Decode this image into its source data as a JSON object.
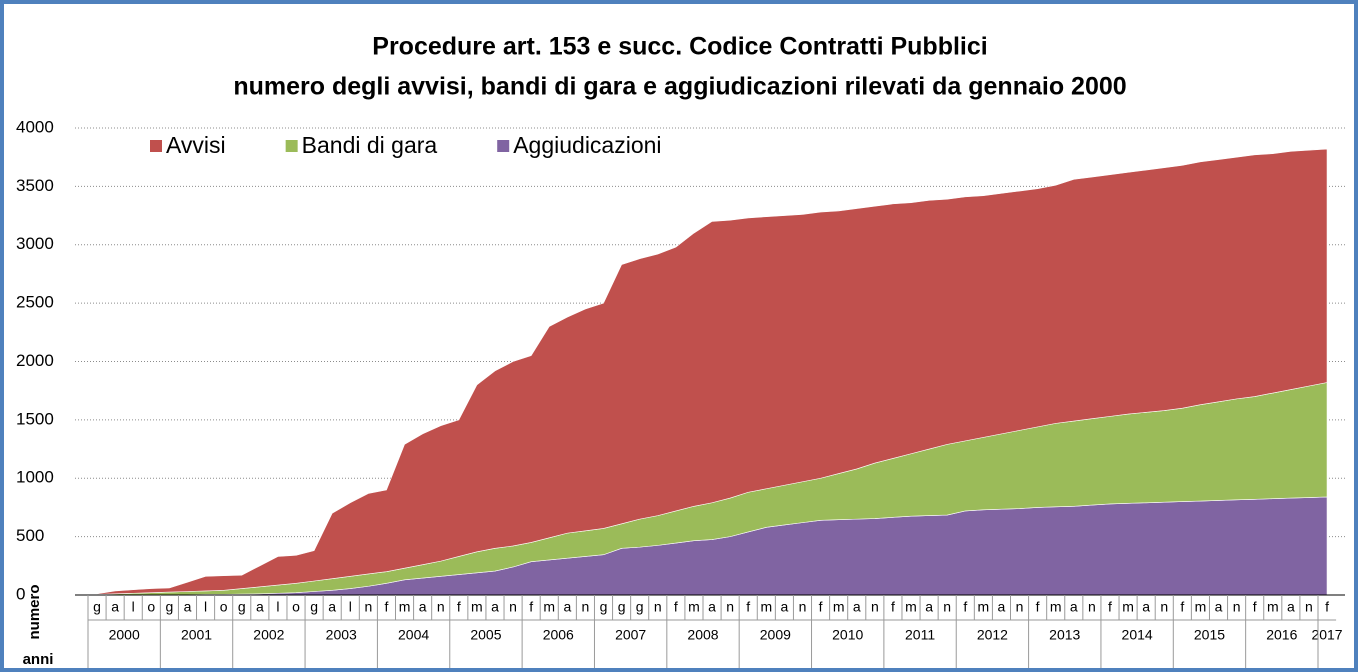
{
  "chart_data": {
    "type": "stacked-area",
    "title": "Procedure art. 153 e succ. Codice Contratti Pubblici",
    "subtitle": "numero degli avvisi, bandi di gara e aggiudicazioni rilevati da gennaio 2000",
    "y_label": "numero",
    "x_label": "anni",
    "categories": [
      "g",
      "a",
      "l",
      "o",
      "g",
      "a",
      "l",
      "o",
      "g",
      "a",
      "l",
      "o",
      "g",
      "a",
      "l",
      "n",
      "f",
      "m",
      "a",
      "n",
      "f",
      "m",
      "a",
      "n",
      "f",
      "m",
      "a",
      "n",
      "g",
      "g",
      "g",
      "n",
      "f",
      "m",
      "a",
      "n",
      "f",
      "m",
      "a",
      "n",
      "f",
      "m",
      "a",
      "n",
      "f",
      "m",
      "a",
      "n",
      "f",
      "m",
      "a",
      "n",
      "f",
      "m",
      "a",
      "n",
      "f",
      "m",
      "a",
      "n",
      "f",
      "m",
      "a",
      "n",
      "f",
      "m",
      "a",
      "n",
      "f"
    ],
    "year_labels": [
      "2000",
      "2001",
      "2002",
      "2003",
      "2004",
      "2005",
      "2006",
      "2007",
      "2008",
      "2009",
      "2010",
      "2011",
      "2012",
      "2013",
      "2014",
      "2015",
      "2016",
      "2017"
    ],
    "series": [
      {
        "name": "Aggiudicazioni",
        "color": "#8064a2",
        "values": [
          0,
          0,
          0,
          0,
          0,
          2,
          5,
          5,
          8,
          10,
          15,
          20,
          30,
          40,
          55,
          75,
          100,
          130,
          145,
          160,
          175,
          190,
          205,
          240,
          285,
          300,
          315,
          330,
          345,
          400,
          410,
          425,
          445,
          465,
          475,
          500,
          540,
          580,
          600,
          620,
          640,
          645,
          650,
          655,
          665,
          675,
          680,
          685,
          720,
          730,
          735,
          740,
          750,
          755,
          760,
          770,
          780,
          785,
          790,
          795,
          800,
          805,
          810,
          815,
          820,
          825,
          830,
          835,
          840
        ]
      },
      {
        "name": "Bandi di gara",
        "color": "#9bbb59",
        "values": [
          5,
          10,
          15,
          20,
          25,
          28,
          30,
          35,
          47,
          60,
          70,
          80,
          90,
          100,
          105,
          105,
          100,
          100,
          115,
          130,
          155,
          180,
          195,
          180,
          165,
          190,
          215,
          220,
          225,
          210,
          240,
          255,
          275,
          295,
          315,
          330,
          340,
          330,
          340,
          350,
          360,
          395,
          430,
          475,
          505,
          535,
          570,
          605,
          600,
          620,
          645,
          670,
          690,
          715,
          730,
          740,
          750,
          765,
          775,
          785,
          800,
          825,
          845,
          865,
          880,
          905,
          930,
          955,
          980
        ]
      },
      {
        "name": "Avvisi",
        "color": "#c0504d",
        "values": [
          5,
          25,
          30,
          35,
          35,
          80,
          125,
          125,
          115,
          180,
          245,
          240,
          260,
          560,
          630,
          690,
          700,
          1060,
          1120,
          1160,
          1170,
          1430,
          1520,
          1580,
          1600,
          1810,
          1850,
          1900,
          1930,
          2220,
          2230,
          2240,
          2260,
          2340,
          2410,
          2380,
          2350,
          2330,
          2310,
          2290,
          2280,
          2250,
          2230,
          2200,
          2180,
          2150,
          2130,
          2100,
          2090,
          2070,
          2060,
          2050,
          2040,
          2040,
          2070,
          2070,
          2070,
          2070,
          2075,
          2080,
          2080,
          2080,
          2075,
          2070,
          2070,
          2050,
          2040,
          2020,
          2000
        ]
      }
    ],
    "legend_order": [
      2,
      1,
      0
    ],
    "ylim": [
      0,
      4000
    ],
    "yticks": [
      0,
      500,
      1000,
      1500,
      2000,
      2500,
      3000,
      3500,
      4000
    ],
    "grid": true
  }
}
